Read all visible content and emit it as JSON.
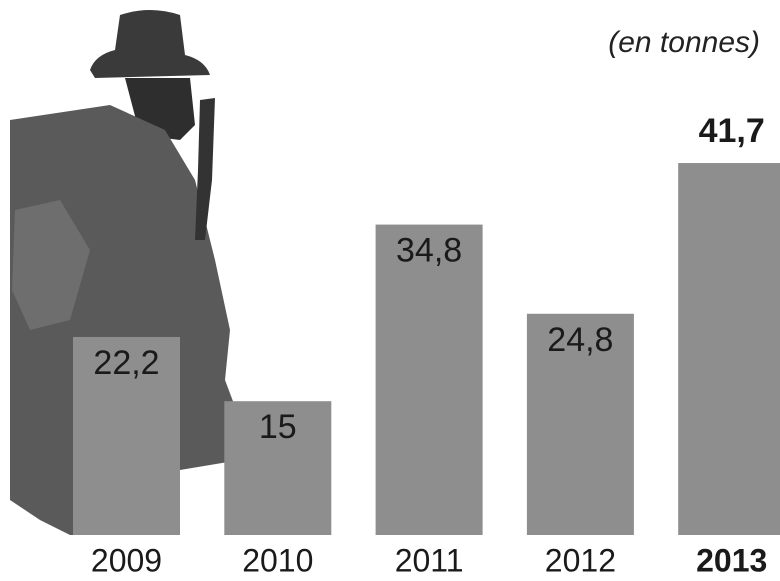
{
  "chart_data": {
    "type": "bar",
    "subtitle": "(en tonnes)",
    "categories": [
      "2009",
      "2010",
      "2011",
      "2012",
      "2013"
    ],
    "values": [
      22.2,
      15,
      34.8,
      24.8,
      41.7
    ],
    "value_labels": [
      "22,2",
      "15",
      "34,8",
      "24,8",
      "41,7"
    ],
    "color": "#8e8e8e",
    "highlight_index": 4
  }
}
